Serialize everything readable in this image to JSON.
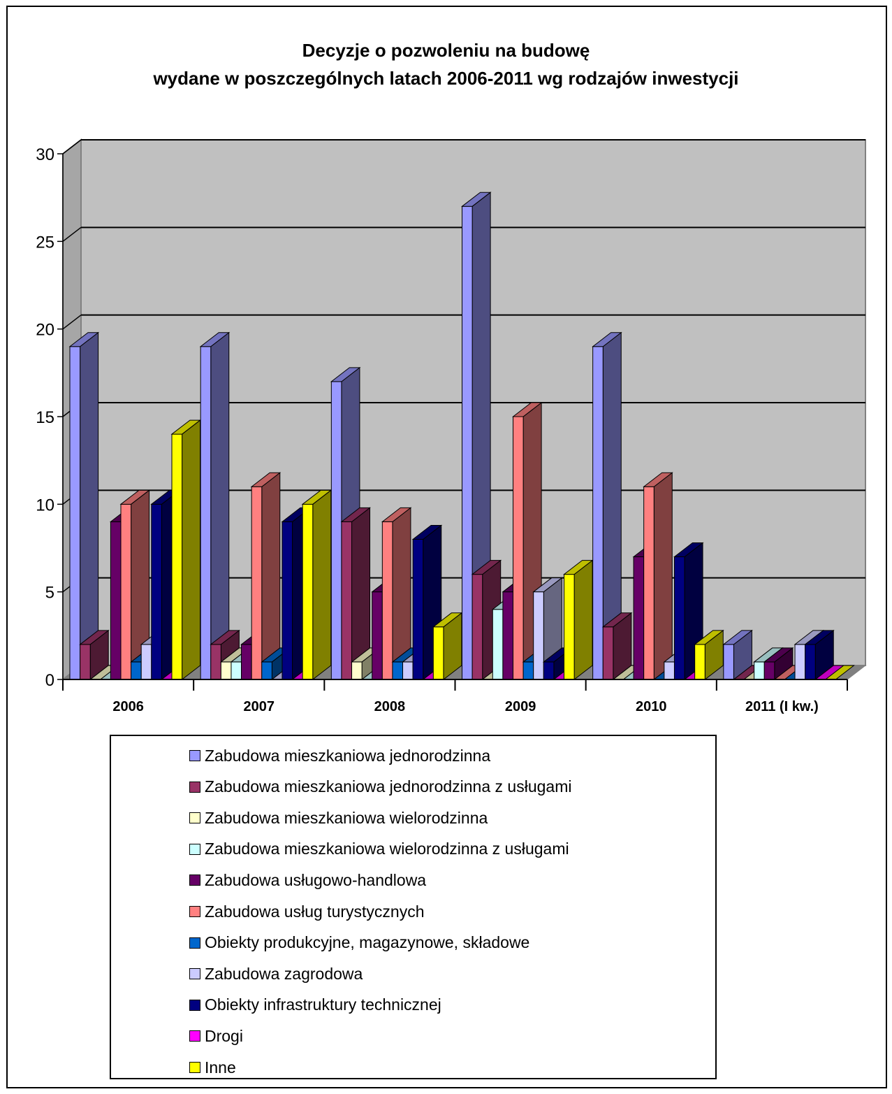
{
  "chart_data": {
    "type": "bar",
    "title_line1": "Decyzje o pozwoleniu na budowę",
    "title_line2": "wydane w poszczególnych latach 2006-2011 wg rodzajów inwestycji",
    "categories": [
      "2006",
      "2007",
      "2008",
      "2009",
      "2010",
      "2011 (I kw.)"
    ],
    "ylim": [
      0,
      30
    ],
    "yticks": [
      "0",
      "5",
      "10",
      "15",
      "20",
      "25",
      "30"
    ],
    "grid": true,
    "legend_position": "bottom",
    "series": [
      {
        "name": "Zabudowa mieszkaniowa jednorodzinna",
        "color": "#9999FF",
        "values": [
          19,
          19,
          17,
          27,
          19,
          2
        ]
      },
      {
        "name": "Zabudowa mieszkaniowa jednorodzinna z usługami",
        "color": "#993366",
        "values": [
          2,
          2,
          9,
          6,
          3,
          0
        ]
      },
      {
        "name": "Zabudowa mieszkaniowa wielorodzinna",
        "color": "#FFFFCC",
        "values": [
          0,
          1,
          1,
          0,
          0,
          0
        ]
      },
      {
        "name": "Zabudowa mieszkaniowa wielorodzinna z usługami",
        "color": "#CCFFFF",
        "values": [
          0,
          1,
          0,
          4,
          0,
          1
        ]
      },
      {
        "name": "Zabudowa usługowo-handlowa",
        "color": "#660066",
        "values": [
          9,
          2,
          5,
          5,
          7,
          1
        ]
      },
      {
        "name": "Zabudowa usług turystycznych",
        "color": "#FF8080",
        "values": [
          10,
          11,
          9,
          15,
          11,
          0
        ]
      },
      {
        "name": "Obiekty produkcyjne, magazynowe, składowe",
        "color": "#0066CC",
        "values": [
          1,
          1,
          1,
          1,
          0,
          0
        ]
      },
      {
        "name": "Zabudowa zagrodowa",
        "color": "#CCCCFF",
        "values": [
          2,
          0,
          1,
          5,
          1,
          2
        ]
      },
      {
        "name": "Obiekty infrastruktury technicznej",
        "color": "#000080",
        "values": [
          10,
          9,
          8,
          1,
          7,
          2
        ]
      },
      {
        "name": "Drogi",
        "color": "#FF00FF",
        "values": [
          0,
          0,
          0,
          0,
          0,
          0
        ]
      },
      {
        "name": "Inne",
        "color": "#FFFF00",
        "values": [
          14,
          10,
          3,
          6,
          2,
          0
        ]
      }
    ]
  }
}
